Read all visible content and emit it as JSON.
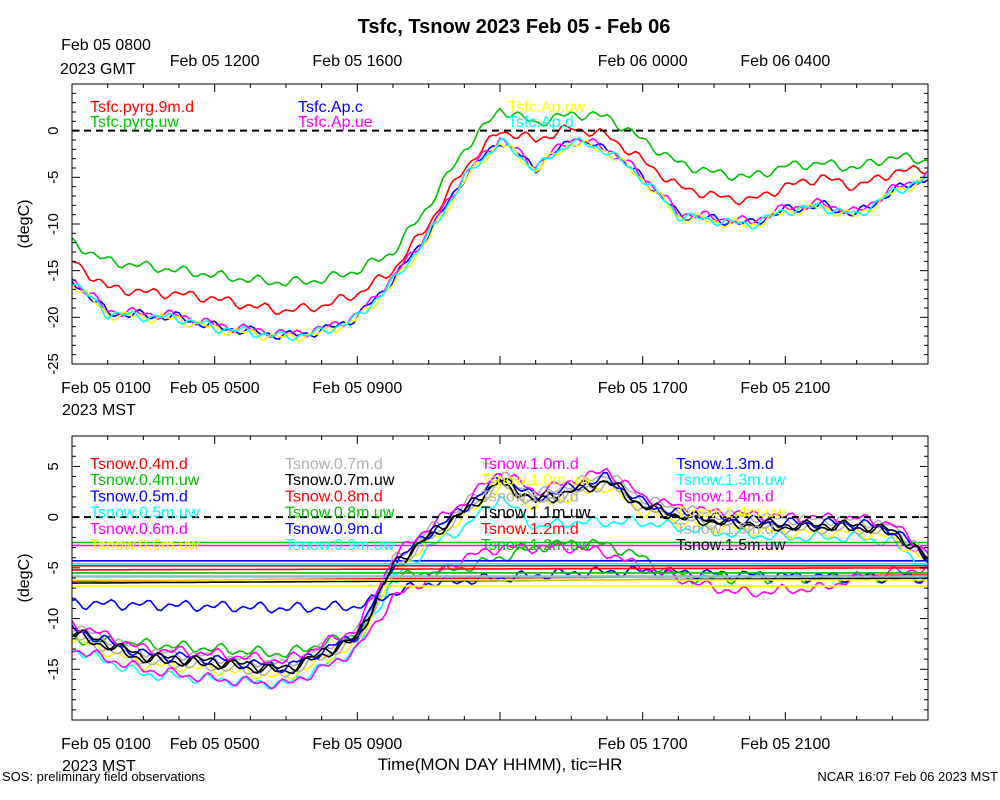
{
  "figure": {
    "title": "Tsfc, Tsnow 2023 Feb 05 - Feb 06",
    "xlabel": "Time(MON DAY HHMM), tic=HR",
    "footer_left": "SOS: preliminary field observations",
    "footer_right": "NCAR 16:07 Feb 06 2023 MST"
  },
  "time_axis": {
    "start": "2023-02-05 08:00 GMT",
    "end": "2023-02-06 08:00 GMT",
    "top_ticks": [
      {
        "label": "Feb 05 0800",
        "t": 0
      },
      {
        "label": "Feb 05 1200",
        "t": 4
      },
      {
        "label": "Feb 05 1600",
        "t": 8
      },
      {
        "label": "Feb 06 0000",
        "t": 16
      },
      {
        "label": "Feb 06 0400",
        "t": 20
      }
    ],
    "top_zone": "2023 GMT",
    "bottom_ticks": [
      {
        "label": "Feb 05 0100",
        "t": 0
      },
      {
        "label": "Feb 05 0500",
        "t": 4
      },
      {
        "label": "Feb 05 0900",
        "t": 8
      },
      {
        "label": "Feb 05 1700",
        "t": 16
      },
      {
        "label": "Feb 05 2100",
        "t": 20
      }
    ],
    "bottom_zone": "2023 MST"
  },
  "chart_data": [
    {
      "type": "line",
      "panel": "top",
      "ylabel": "(degC)",
      "ylim": [
        -25,
        5
      ],
      "yticks": [
        0,
        -5,
        -10,
        -15,
        -20,
        -25
      ],
      "x_units": "hours since Feb 05 0800 GMT",
      "grid": false,
      "zero_reference": "dashed black line at 0",
      "series": [
        {
          "name": "Tsfc.pyrg.9m.d",
          "color": "#ff0000",
          "x": [
            0,
            1,
            2,
            3,
            4,
            5,
            6,
            7,
            8,
            9,
            10,
            11,
            12,
            13,
            14,
            15,
            16,
            17,
            18,
            19,
            20,
            21,
            22,
            23,
            24
          ],
          "y": [
            -14,
            -16.8,
            -17.3,
            -17.5,
            -18,
            -18.8,
            -19.3,
            -18.8,
            -17.5,
            -15,
            -10,
            -4,
            0,
            -1,
            0.3,
            -0.5,
            -3.2,
            -6,
            -7,
            -7.5,
            -6,
            -5,
            -6,
            -4.5,
            -4
          ]
        },
        {
          "name": "Tsfc.pyrg.uw",
          "color": "#00c000",
          "x": [
            0,
            1,
            2,
            3,
            4,
            5,
            6,
            7,
            8,
            9,
            10,
            11,
            12,
            13,
            14,
            15,
            16,
            17,
            18,
            19,
            20,
            21,
            22,
            23,
            24
          ],
          "y": [
            -12,
            -14,
            -14.5,
            -15,
            -15.5,
            -16,
            -16.3,
            -16,
            -15,
            -13,
            -8,
            -2,
            2.3,
            0.8,
            1.8,
            1.5,
            -1,
            -3.5,
            -4.5,
            -5,
            -3.8,
            -3.5,
            -4,
            -2.8,
            -3.2
          ]
        },
        {
          "name": "Tsfc.Ap.c",
          "color": "#0000ff",
          "x": [
            0,
            1,
            2,
            3,
            4,
            5,
            6,
            7,
            8,
            9,
            10,
            11,
            12,
            13,
            14,
            15,
            16,
            17,
            18,
            19,
            20,
            21,
            22,
            23,
            24
          ],
          "y": [
            -16,
            -19.5,
            -19.8,
            -20,
            -21,
            -21.5,
            -22,
            -21.5,
            -20,
            -16,
            -11,
            -5,
            -1,
            -4,
            -1,
            -2,
            -5,
            -9,
            -9.5,
            -10,
            -8.5,
            -8,
            -9,
            -6.5,
            -5
          ]
        },
        {
          "name": "Tsfc.Ap.ue",
          "color": "#ff00ff",
          "x": [
            0,
            1,
            2,
            3,
            4,
            5,
            6,
            7,
            8,
            9,
            10,
            11,
            12,
            13,
            14,
            15,
            16,
            17,
            18,
            19,
            20,
            21,
            22,
            23,
            24
          ],
          "y": [
            -15.8,
            -19.3,
            -19.6,
            -19.8,
            -20.8,
            -21.3,
            -21.8,
            -21.3,
            -19.8,
            -15.8,
            -10.8,
            -4.8,
            -0.8,
            -3.8,
            -0.8,
            -1.8,
            -4.8,
            -8.8,
            -9.3,
            -9.8,
            -8.3,
            -7.8,
            -8.8,
            -6.3,
            -4.8
          ]
        },
        {
          "name": "Tsfc.Ap.uw",
          "color": "#ffff00",
          "x": [
            0,
            1,
            2,
            3,
            4,
            5,
            6,
            7,
            8,
            9,
            10,
            11,
            12,
            13,
            14,
            15,
            16,
            17,
            18,
            19,
            20,
            21,
            22,
            23,
            24
          ],
          "y": [
            -16.2,
            -19.7,
            -20,
            -20.2,
            -21.2,
            -21.7,
            -22.2,
            -21.7,
            -20.2,
            -16.5,
            -11.5,
            -5.3,
            -1.2,
            -4.2,
            -1.2,
            -2.2,
            -5.2,
            -9.2,
            -9.7,
            -10.2,
            -8.7,
            -8.2,
            -9.2,
            -6.7,
            -5.2
          ]
        },
        {
          "name": "Tsfc.Ap.d",
          "color": "#00ffff",
          "x": [
            0,
            1,
            2,
            3,
            4,
            5,
            6,
            7,
            8,
            9,
            10,
            11,
            12,
            13,
            14,
            15,
            16,
            17,
            18,
            19,
            20,
            21,
            22,
            23,
            24
          ],
          "y": [
            -16.1,
            -19.6,
            -19.9,
            -20.1,
            -21.1,
            -21.6,
            -22.1,
            -21.6,
            -20.1,
            -16.2,
            -11.2,
            -5.1,
            -1.1,
            -4.1,
            -1.1,
            -2.1,
            -5.1,
            -9.1,
            -9.6,
            -10.1,
            -8.6,
            -8.1,
            -9.1,
            -6.6,
            -5.1
          ]
        }
      ]
    },
    {
      "type": "line",
      "panel": "bottom",
      "ylabel": "(degC)",
      "ylim": [
        -20,
        8
      ],
      "yticks": [
        5,
        0,
        -5,
        -10,
        -15
      ],
      "x_units": "hours since Feb 05 0800 GMT",
      "grid": false,
      "zero_reference": "dashed black line at 0",
      "series": [
        {
          "name": "Tsnow.0.4m.d",
          "color": "#ff0000",
          "x": [
            0,
            24
          ],
          "y": [
            -6.3,
            -5.7
          ]
        },
        {
          "name": "Tsnow.0.4m.uw",
          "color": "#00c000",
          "x": [
            0,
            4,
            6,
            8,
            9,
            10,
            11,
            12,
            13,
            14,
            15,
            16,
            17,
            24
          ],
          "y": [
            -12,
            -13,
            -13.5,
            -11.5,
            -6,
            -5.5,
            -5,
            -4,
            -3,
            -2.5,
            -2.7,
            -4,
            -6,
            -6
          ]
        },
        {
          "name": "Tsnow.0.5m.d",
          "color": "#0000ff",
          "x": [
            0,
            24
          ],
          "y": [
            -4.3,
            -4.3
          ]
        },
        {
          "name": "Tsnow.0.5m.uw",
          "color": "#00ffff",
          "x": [
            0,
            2,
            4,
            6,
            8,
            9,
            10,
            11,
            12,
            13,
            14,
            15,
            16,
            17,
            18,
            20,
            22,
            23,
            24
          ],
          "y": [
            -13,
            -15.5,
            -16,
            -16.5,
            -13,
            -6,
            -3,
            -1,
            2,
            -1,
            -0.5,
            -0.5,
            -0.5,
            -1,
            -1.5,
            -2,
            -2,
            -2.5,
            -5
          ]
        },
        {
          "name": "Tsnow.0.6m.d",
          "color": "#ff00ff",
          "x": [
            0,
            24
          ],
          "y": [
            -2.8,
            -2.8
          ]
        },
        {
          "name": "Tsnow.0.6m.uw",
          "color": "#ffff00",
          "x": [
            0,
            2,
            4,
            6,
            8,
            9,
            10,
            11,
            12,
            13,
            14,
            15,
            16,
            17,
            18,
            20,
            22,
            23,
            24
          ],
          "y": [
            -12,
            -14.5,
            -15,
            -15.8,
            -12.5,
            -5.5,
            -2.5,
            0,
            3,
            1,
            2,
            3,
            0.5,
            -0.5,
            -1,
            -1.5,
            -1.5,
            -2,
            -4.5
          ]
        },
        {
          "name": "Tsnow.0.7m.d",
          "color": "#b0b0b0",
          "x": [
            0,
            2,
            4,
            6,
            8,
            9,
            10,
            11,
            12,
            13,
            14,
            15,
            16,
            17,
            18,
            20,
            22,
            23,
            24
          ],
          "y": [
            -11.8,
            -14.3,
            -14.8,
            -15.5,
            -12.2,
            -5.2,
            -2.2,
            0.3,
            3.3,
            1.3,
            2.3,
            3.3,
            0.8,
            -0.2,
            -0.7,
            -1.2,
            -1.2,
            -1.7,
            -4.3
          ]
        },
        {
          "name": "Tsnow.0.7m.uw",
          "color": "#000000",
          "x": [
            0,
            2,
            4,
            6,
            8,
            9,
            10,
            11,
            12,
            13,
            14,
            15,
            16,
            17,
            18,
            20,
            22,
            23,
            24
          ],
          "y": [
            -11.5,
            -14,
            -14.5,
            -15.2,
            -12,
            -5,
            -2,
            0.5,
            3.5,
            1.5,
            2.5,
            3.5,
            1,
            0,
            -0.5,
            -1,
            -1,
            -1.5,
            -4.2
          ]
        },
        {
          "name": "Tsnow.0.8m.d",
          "color": "#ff0000",
          "x": [
            0,
            24
          ],
          "y": [
            -4.8,
            -4.8
          ]
        },
        {
          "name": "Tsnow.0.8m.uw",
          "color": "#00c000",
          "x": [
            0,
            24
          ],
          "y": [
            -2.5,
            -2.5
          ]
        },
        {
          "name": "Tsnow.0.9m.d",
          "color": "#0000ff",
          "x": [
            0,
            4,
            6,
            8,
            9,
            10,
            12,
            14,
            16,
            18,
            20,
            22,
            24
          ],
          "y": [
            -8.5,
            -8.8,
            -9,
            -8.8,
            -7.5,
            -6.5,
            -6,
            -5.5,
            -5.3,
            -5.6,
            -5.8,
            -5.9,
            -6
          ]
        },
        {
          "name": "Tsnow.0.9m.uw",
          "color": "#00ffff",
          "x": [
            0,
            24
          ],
          "y": [
            -5.8,
            -5.8
          ]
        },
        {
          "name": "Tsnow.1.0m.d",
          "color": "#ff00ff",
          "x": [
            0,
            2,
            4,
            6,
            7,
            8,
            9,
            10,
            11,
            12,
            13,
            14,
            15,
            16,
            17,
            18,
            19,
            20,
            21,
            22,
            23,
            24
          ],
          "y": [
            -13,
            -15,
            -16,
            -16.5,
            -15,
            -13,
            -8,
            -6,
            -4,
            -3,
            -3,
            -3,
            -3.5,
            -5,
            -6,
            -7,
            -7.5,
            -7.2,
            -7,
            -6,
            -5.5,
            -5
          ]
        },
        {
          "name": "Tsnow.1.0m.uw",
          "color": "#ffff00",
          "x": [
            0,
            24
          ],
          "y": [
            -6.8,
            -6.8
          ]
        },
        {
          "name": "Tsnow.1.1m.d",
          "color": "#b0b0b0",
          "x": [
            0,
            2,
            4,
            6,
            8,
            9,
            10,
            11,
            12,
            13,
            14,
            15,
            16,
            17,
            18,
            20,
            22,
            23,
            24
          ],
          "y": [
            -10.8,
            -13.2,
            -13.8,
            -14.5,
            -11.3,
            -4.3,
            -1.3,
            1.2,
            4.2,
            2.2,
            3.2,
            4.3,
            1.8,
            0.8,
            0.3,
            -0.2,
            -0.3,
            -0.9,
            -3.6
          ]
        },
        {
          "name": "Tsnow.1.1m.uw",
          "color": "#000000",
          "x": [
            0,
            24
          ],
          "y": [
            -6.5,
            -6.0
          ]
        },
        {
          "name": "Tsnow.1.2m.d",
          "color": "#ff0000",
          "x": [
            0,
            24
          ],
          "y": [
            -5.2,
            -5.0
          ]
        },
        {
          "name": "Tsnow.1.2m.uw",
          "color": "#00c000",
          "x": [
            0,
            24
          ],
          "y": [
            -5.5,
            -5.5
          ]
        },
        {
          "name": "Tsnow.1.3m.d",
          "color": "#0000ff",
          "x": [
            0,
            2,
            4,
            6,
            8,
            9,
            10,
            11,
            12,
            13,
            14,
            15,
            16,
            17,
            18,
            20,
            22,
            23,
            24
          ],
          "y": [
            -11,
            -13.5,
            -14,
            -14.8,
            -11.6,
            -4.6,
            -1.6,
            0.9,
            3.9,
            1.9,
            2.9,
            3.9,
            1.4,
            0.4,
            -0.1,
            -0.6,
            -0.6,
            -1.2,
            -3.9
          ]
        },
        {
          "name": "Tsnow.1.3m.uw",
          "color": "#00ffff",
          "x": [
            0,
            24
          ],
          "y": [
            -4.6,
            -4.6
          ]
        },
        {
          "name": "Tsnow.1.4m.d",
          "color": "#ff00ff",
          "x": [
            0,
            2,
            4,
            6,
            8,
            9,
            10,
            11,
            12,
            13,
            14,
            15,
            16,
            17,
            18,
            20,
            22,
            23,
            24
          ],
          "y": [
            -10.5,
            -13,
            -13.5,
            -14.2,
            -11,
            -4,
            -1,
            1.5,
            4.5,
            2.5,
            3.5,
            4.6,
            2,
            1,
            0.5,
            0,
            -0.1,
            -0.7,
            -3.5
          ]
        },
        {
          "name": "Tsnow.1.4m.uw",
          "color": "#ffff00",
          "x": [
            0,
            24
          ],
          "y": [
            -6.2,
            -6.2
          ]
        },
        {
          "name": "Tsnow.1.5m.d",
          "color": "#b0b0b0",
          "x": [
            0,
            24
          ],
          "y": [
            -5.9,
            -5.9
          ]
        },
        {
          "name": "Tsnow.1.5m.uw",
          "color": "#000000",
          "x": [
            0,
            2,
            4,
            6,
            8,
            9,
            10,
            11,
            12,
            13,
            14,
            15,
            16,
            17,
            18,
            20,
            22,
            23,
            24
          ],
          "y": [
            -11.2,
            -13.7,
            -14.2,
            -15,
            -11.8,
            -4.8,
            -1.8,
            0.7,
            3.7,
            1.7,
            2.7,
            3.7,
            1.2,
            0.2,
            -0.3,
            -0.8,
            -0.8,
            -1.3,
            -4.1
          ]
        }
      ]
    }
  ]
}
